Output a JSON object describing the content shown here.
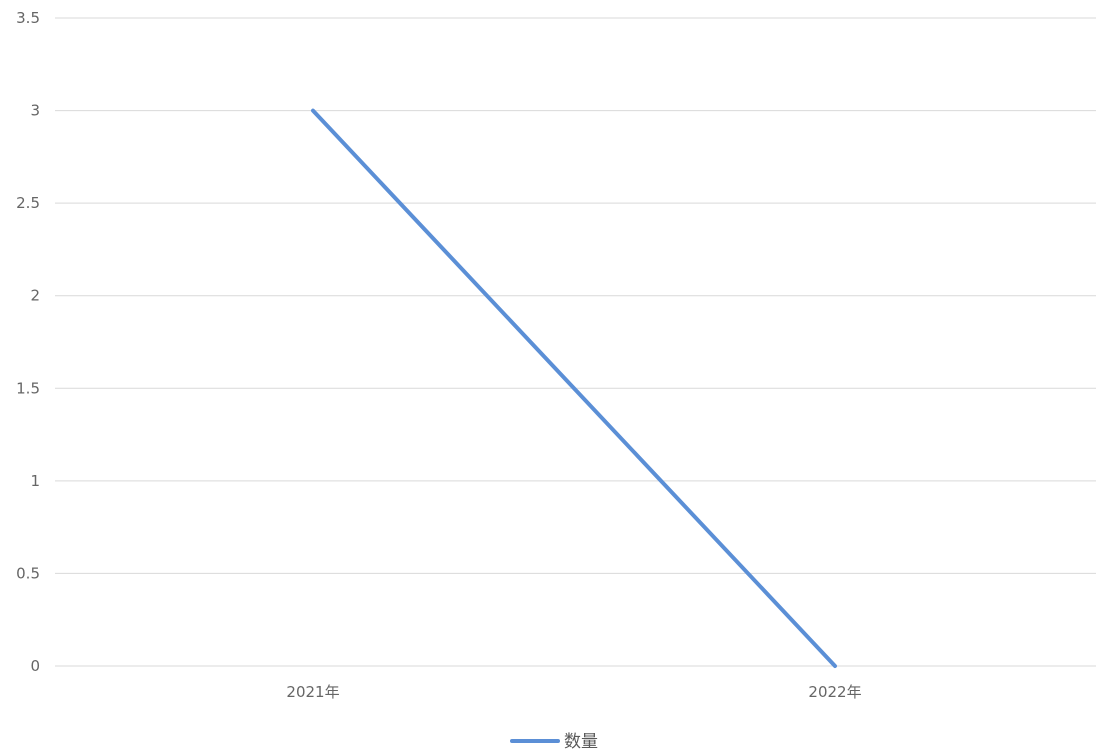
{
  "chart_data": {
    "type": "line",
    "categories": [
      "2021年",
      "2022年"
    ],
    "series": [
      {
        "name": "数量",
        "values": [
          3,
          0
        ],
        "color": "#5B8FD6"
      }
    ],
    "ylim": [
      0,
      3.5
    ],
    "yticks": [
      0,
      0.5,
      1,
      1.5,
      2,
      2.5,
      3,
      3.5
    ],
    "ytick_labels": [
      "0",
      "0.5",
      "1",
      "1.5",
      "2",
      "2.5",
      "3",
      "3.5"
    ],
    "grid": true,
    "legend_position": "bottom"
  },
  "colors": {
    "grid": "#D9D9D9",
    "tick_text": "#666666",
    "legend_text": "#595959"
  }
}
